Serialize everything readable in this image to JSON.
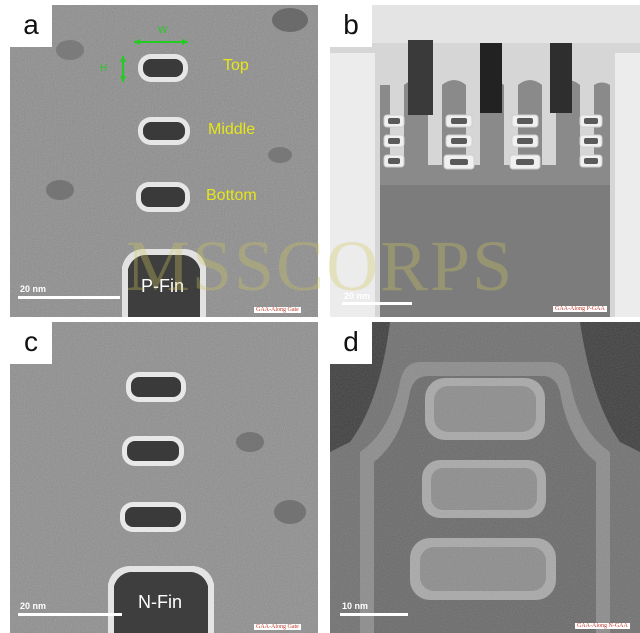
{
  "panels": [
    {
      "label": "a",
      "scale_text": "20 nm",
      "caption": "GAA-Along Gate",
      "fin_label": "P-Fin",
      "sheet_labels": [
        "Top",
        "Middle",
        "Bottom"
      ],
      "dim_width": "W",
      "dim_height": "H"
    },
    {
      "label": "b",
      "scale_text": "20 nm",
      "caption": "GAA-Along P-GAA"
    },
    {
      "label": "c",
      "scale_text": "20 nm",
      "caption": "GAA-Along Gate",
      "fin_label": "N-Fin"
    },
    {
      "label": "d",
      "scale_text": "10 nm",
      "caption": "GAA-Along N-GAA"
    }
  ],
  "watermark": "MSSCORPS"
}
